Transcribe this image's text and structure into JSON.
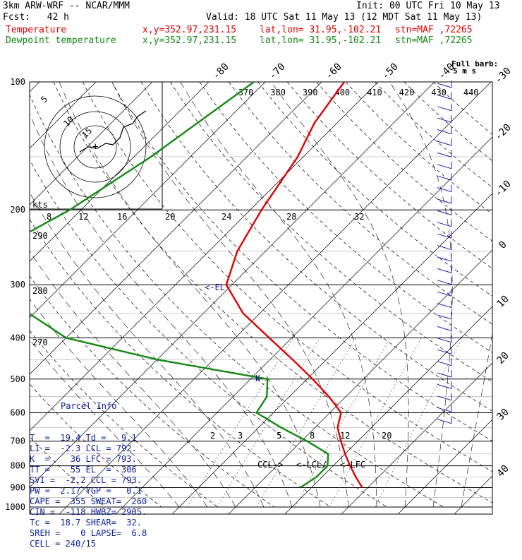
{
  "header": {
    "model": "3km ARW-WRF -- NCAR/MMM",
    "init": "Init: 00 UTC Fri 10 May 13",
    "fcst": "Fcst:   42 h",
    "valid": "Valid: 18 UTC Sat 11 May 13 (12 MDT Sat 11 May 13)",
    "temp_label": "Temperature",
    "temp_xy": "x,y=352.97,231.15",
    "temp_latlon": "lat,lon= 31.95,-102.21",
    "temp_stn": "stn=MAF ,72265",
    "dew_label": "Dewpoint temperature",
    "dew_xy": "x,y=352.97,231.15",
    "dew_latlon": "lat,lon= 31.95,-102.21",
    "dew_stn": "stn=MAF ,72265"
  },
  "legend": {
    "full_barb": "Full barb:",
    "full_barb_val": "5 m s"
  },
  "parcel": {
    "title": "Parcel Info",
    "rows": [
      "T  =  19.4 Td =   9.1",
      "LI =  -2.3 LCL = 792.",
      "K  =    36 LFC = 793.",
      "TT =    55 EL  =  306",
      "SVI =  -2.2 CCL = 793.",
      "PW =  2.17 YGP =   0.1",
      "CAPE =  355 SWEAT=  260",
      "CIN =  -118 HWBZ= 2905.",
      "Tc =  18.7 SHEAR=  32.",
      "SREH =    0 LAPSE=  6.8",
      "CELL = 240/15"
    ]
  },
  "annotations": {
    "el": "<-EL",
    "ccl": "CCL->",
    "lcl": "<-LCL/",
    "lfc": "<-LFC",
    "k": "K"
  },
  "hodograph": {
    "units": "kts",
    "rings": [
      "5",
      "10",
      "15"
    ],
    "plus": "+"
  },
  "colors": {
    "temperature": "#e00000",
    "dewpoint": "#138a13",
    "info": "#0a1f9c",
    "barbs": "#2020c0"
  },
  "chart_data": {
    "type": "line",
    "title": "",
    "pressure_levels": [
      "100",
      "200",
      "300",
      "400",
      "500",
      "600",
      "700",
      "800",
      "900",
      "1000"
    ],
    "isotherm_labels": [
      "-80",
      "-70",
      "-60",
      "-50",
      "-40",
      "-30",
      "-20",
      "-10",
      "0",
      "10",
      "20",
      "30",
      "40"
    ],
    "theta_labels": [
      "370",
      "380",
      "390",
      "400",
      "410",
      "420",
      "430",
      "440"
    ],
    "theta_left_labels": [
      "290",
      "280",
      "270"
    ],
    "mixing_top_labels": [
      "8",
      "12",
      "16",
      "20",
      "24",
      "28",
      "32"
    ],
    "mixing_low_labels": [
      "2",
      "3",
      "5",
      "8",
      "12",
      "20"
    ],
    "series": [
      {
        "p": [
          100,
          125,
          150,
          200,
          250,
          300,
          350,
          400,
          450,
          500,
          550,
          600,
          650,
          700,
          750,
          800,
          850,
          900
        ],
        "t": [
          -56,
          -54,
          -51,
          -48,
          -45,
          -41,
          -33,
          -24,
          -16,
          -9,
          -3,
          2,
          4,
          7,
          10,
          13,
          16,
          19
        ]
      },
      {
        "p": [
          100,
          150,
          200,
          250,
          300,
          350,
          400,
          450,
          500,
          550,
          600,
          650,
          700,
          750,
          800,
          850,
          900
        ],
        "t": [
          -72,
          -77,
          -82,
          -88,
          -84,
          -71,
          -60,
          -40,
          -17,
          -14,
          -13,
          -6,
          1,
          7,
          9,
          9,
          8
        ]
      }
    ]
  }
}
